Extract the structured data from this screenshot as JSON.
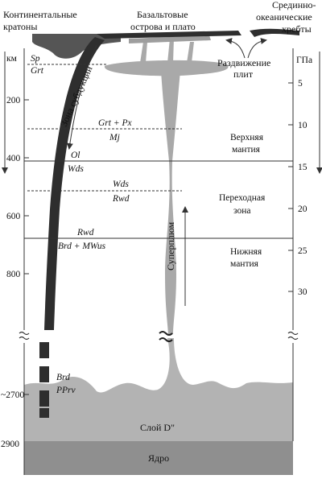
{
  "labels": {
    "cratons_1": "Континентальные",
    "cratons_2": "кратоны",
    "basalt_1": "Базальтовые",
    "basalt_2": "острова и плато",
    "ridges_1": "Срединно-",
    "ridges_2": "океанические",
    "ridges_3": "хребты",
    "km_unit": "км",
    "gpa_unit": "ГПа",
    "spreading_1": "Раздвижение",
    "spreading_2": "плит",
    "subduction_zone": "Зона субдукции",
    "superplume": "Суперплюм",
    "upper_mantle_1": "Верхняя",
    "upper_mantle_2": "мантия",
    "transition_1": "Переходная",
    "transition_2": "зона",
    "lower_mantle_1": "Нижняя",
    "lower_mantle_2": "мантия",
    "d_layer": "Слой D\"",
    "core": "Ядро"
  },
  "phases": {
    "sp": "Sp",
    "grt_top": "Grt",
    "grt_px": "Grt + Px",
    "mj": "Mj",
    "ol": "Ol",
    "wds_left": "Wds",
    "wds_mid": "Wds",
    "rwd_mid": "Rwd",
    "rwd_low": "Rwd",
    "brd_mwus": "Brd + MWus",
    "brd_bottom": "Brd",
    "pprv": "PPrv"
  },
  "depth_ticks_km": [
    "200",
    "400",
    "600",
    "800",
    "~2700",
    "2900"
  ],
  "pressure_ticks_gpa": [
    "5",
    "10",
    "15",
    "20",
    "25",
    "30"
  ],
  "colors": {
    "dark": "#2e2e2e",
    "plume": "#a9a9a9",
    "d_layer": "#b3b3b3",
    "core": "#8f8f8f",
    "line": "#333333"
  },
  "icons": {
    "depth_arrow": "arrow-down-icon",
    "pressure_arrow": "arrow-down-icon",
    "axis_break": "axis-break-icon",
    "plume_break": "double-tilde-break-icon",
    "upwelling_arrow": "arrow-up-icon",
    "subduction_arrow": "curved-arrow-icon",
    "spreading_arrows": "diverging-arrows-icon"
  }
}
